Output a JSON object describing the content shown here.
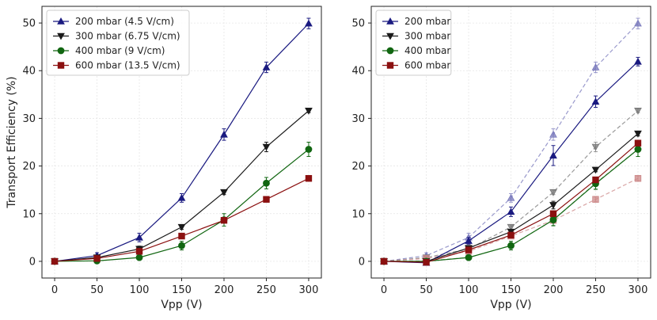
{
  "chart_data": [
    {
      "type": "line",
      "xlabel": "Vpp (V)",
      "ylabel": "Transport Efficiency (%)",
      "xlim": [
        -15,
        315
      ],
      "ylim": [
        -3.5,
        53.5
      ],
      "x_ticks": [
        0,
        50,
        100,
        150,
        200,
        250,
        300
      ],
      "y_ticks": [
        0,
        10,
        20,
        30,
        40,
        50
      ],
      "grid": true,
      "legend_position": "top-left",
      "x": [
        0,
        50,
        100,
        150,
        200,
        250,
        300
      ],
      "series": [
        {
          "name": "200 mbar (4.5 V/cm)",
          "color": "#1a1a80",
          "marker": "triangle-up",
          "style": "solid",
          "values": [
            0,
            1.2,
            5.0,
            13.3,
            26.6,
            40.7,
            49.9
          ],
          "errors": [
            0.3,
            0.6,
            0.9,
            0.9,
            1.2,
            1.1,
            1.1
          ]
        },
        {
          "name": "300 mbar (6.75 V/cm)",
          "color": "#1a1a1a",
          "marker": "triangle-down",
          "style": "solid",
          "values": [
            0,
            0.8,
            2.6,
            7.2,
            14.5,
            24.0,
            31.6
          ],
          "errors": [
            0.2,
            0.4,
            0.6,
            0.5,
            0.5,
            1.0,
            0.4
          ]
        },
        {
          "name": "400 mbar (9 V/cm)",
          "color": "#116611",
          "marker": "circle",
          "style": "solid",
          "values": [
            0,
            0.1,
            0.8,
            3.3,
            8.7,
            16.4,
            23.5
          ],
          "errors": [
            0.2,
            0.4,
            0.3,
            0.9,
            1.3,
            1.2,
            1.5
          ]
        },
        {
          "name": "600 mbar (13.5 V/cm)",
          "color": "#8b1010",
          "marker": "square",
          "style": "solid",
          "values": [
            0,
            0.6,
            2.1,
            5.3,
            8.6,
            13.0,
            17.4
          ],
          "errors": [
            0.2,
            0.3,
            0.4,
            0.4,
            0.5,
            0.5,
            0.5
          ]
        }
      ]
    },
    {
      "type": "line",
      "xlabel": "Vpp (V)",
      "ylabel": "",
      "xlim": [
        -15,
        315
      ],
      "ylim": [
        -3.5,
        53.5
      ],
      "x_ticks": [
        0,
        50,
        100,
        150,
        200,
        250,
        300
      ],
      "y_ticks": [
        0,
        10,
        20,
        30,
        40,
        50
      ],
      "grid": true,
      "legend_position": "top-left",
      "x": [
        0,
        50,
        100,
        150,
        200,
        250,
        300
      ],
      "series": [
        {
          "name": "200 mbar",
          "color": "#1a1a80",
          "marker": "triangle-up",
          "style": "solid",
          "values": [
            0,
            -0.3,
            4.3,
            10.4,
            22.2,
            33.5,
            41.9
          ],
          "errors": [
            0.2,
            0.4,
            0.7,
            1.0,
            2.1,
            1.2,
            0.9
          ]
        },
        {
          "name": "300 mbar",
          "color": "#1a1a1a",
          "marker": "triangle-down",
          "style": "solid",
          "values": [
            0,
            0,
            2.8,
            6.2,
            11.8,
            19.2,
            26.8
          ],
          "errors": [
            0.2,
            0.3,
            0.5,
            0.5,
            0.8,
            0.4,
            0.5
          ]
        },
        {
          "name": "400 mbar",
          "color": "#116611",
          "marker": "circle",
          "style": "solid",
          "values": [
            0,
            0,
            0.8,
            3.3,
            8.7,
            16.3,
            23.5
          ],
          "errors": [
            0.2,
            0.3,
            0.3,
            0.9,
            1.2,
            1.2,
            1.5
          ]
        },
        {
          "name": "600 mbar",
          "color": "#8b1010",
          "marker": "square",
          "style": "solid",
          "values": [
            0,
            -0.2,
            2.4,
            5.5,
            10.0,
            17.1,
            24.8
          ],
          "errors": [
            0.2,
            0.3,
            0.4,
            0.4,
            0.5,
            0.5,
            0.5
          ]
        },
        {
          "color": "#7777bb",
          "marker": "triangle-up",
          "style": "dashed",
          "legend": false,
          "values": [
            0,
            1.2,
            5.0,
            13.3,
            26.6,
            40.7,
            49.9
          ],
          "errors": [
            0.3,
            0.6,
            0.9,
            0.9,
            1.2,
            1.1,
            1.1
          ]
        },
        {
          "color": "#777777",
          "marker": "triangle-down",
          "style": "dashed",
          "legend": false,
          "values": [
            0,
            0.8,
            2.6,
            7.2,
            14.5,
            24.0,
            31.6
          ],
          "errors": [
            0.2,
            0.4,
            0.6,
            0.5,
            0.5,
            1.0,
            0.4
          ]
        },
        {
          "color": "#77aa77",
          "marker": "circle",
          "style": "dashed",
          "legend": false,
          "values": [
            0,
            0.1,
            0.8,
            3.3,
            8.7,
            16.4,
            23.5
          ],
          "errors": [
            0.2,
            0.4,
            0.3,
            0.9,
            1.3,
            1.2,
            1.5
          ]
        },
        {
          "color": "#cc8888",
          "marker": "square",
          "style": "dashed",
          "legend": false,
          "values": [
            0,
            0.6,
            2.1,
            5.3,
            8.6,
            13.0,
            17.4
          ],
          "errors": [
            0.2,
            0.3,
            0.4,
            0.4,
            0.5,
            0.5,
            0.5
          ]
        }
      ]
    }
  ]
}
